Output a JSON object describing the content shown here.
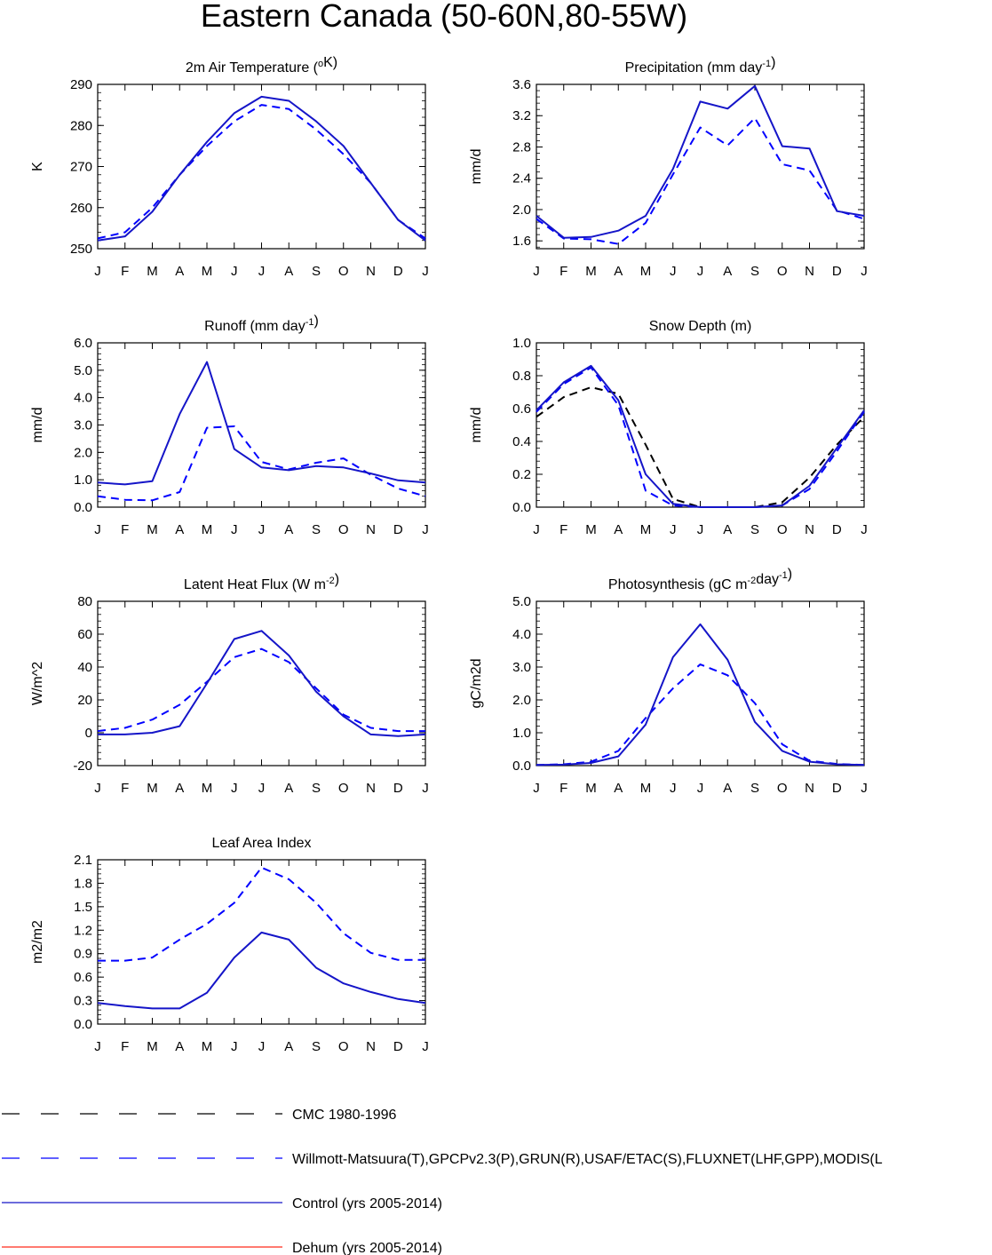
{
  "title": "Eastern Canada (50-60N,80-55W)",
  "colors": {
    "obs": "#0000ff",
    "control": "#1515c8",
    "dehum": "#ff2a1a",
    "cmc": "#000000"
  },
  "legend": [
    {
      "key": "cmc",
      "label": "CMC 1980-1996",
      "style": "dashed",
      "color": "#000000"
    },
    {
      "key": "obs",
      "label": "Willmott-Matsuura(T),GPCPv2.3(P),GRUN(R),USAF/ETAC(S),FLUXNET(LHF,GPP),MODIS(L",
      "style": "dashed",
      "color": "#0000ff"
    },
    {
      "key": "control",
      "label": "Control (yrs 2005-2014)",
      "style": "solid",
      "color": "#1515c8"
    },
    {
      "key": "dehum",
      "label": "Dehum (yrs 2005-2014)",
      "style": "solid",
      "color": "#ff2a1a"
    }
  ],
  "chart_data": [
    {
      "type": "line",
      "title": "2m Air Temperature (",
      "title_sup": "o",
      "title_post": "K)",
      "ylabel": "K",
      "x": [
        "J",
        "F",
        "M",
        "A",
        "M",
        "J",
        "J",
        "A",
        "S",
        "O",
        "N",
        "D",
        "J"
      ],
      "ylim": [
        250,
        290
      ],
      "yticks": [
        "250",
        "260",
        "270",
        "280",
        "290"
      ],
      "series": [
        {
          "name": "Willmott-Matsuura",
          "style": "obs",
          "values": [
            252.5,
            254,
            260,
            268,
            275,
            281,
            285,
            284,
            279,
            273,
            266,
            257,
            252.5
          ]
        },
        {
          "name": "Control",
          "style": "control",
          "values": [
            252,
            253,
            259,
            268,
            276,
            283,
            287,
            286,
            281,
            275,
            266,
            257,
            252
          ]
        }
      ]
    },
    {
      "type": "line",
      "title": "Precipitation (mm day",
      "title_sup": "-1",
      "title_post": ")",
      "ylabel": "mm/d",
      "x": [
        "J",
        "F",
        "M",
        "A",
        "M",
        "J",
        "J",
        "A",
        "S",
        "O",
        "N",
        "D",
        "J"
      ],
      "ylim": [
        1.5,
        3.6
      ],
      "yticks": [
        "1.6",
        "2.0",
        "2.4",
        "2.8",
        "3.2",
        "3.6"
      ],
      "series": [
        {
          "name": "GPCPv2.3",
          "style": "obs",
          "values": [
            1.88,
            1.63,
            1.62,
            1.56,
            1.83,
            2.45,
            3.05,
            2.82,
            3.17,
            2.58,
            2.5,
            1.99,
            1.88
          ]
        },
        {
          "name": "Control",
          "style": "control",
          "values": [
            1.92,
            1.64,
            1.65,
            1.73,
            1.92,
            2.52,
            3.38,
            3.29,
            3.58,
            2.81,
            2.78,
            1.98,
            1.92
          ]
        }
      ]
    },
    {
      "type": "line",
      "title": "Runoff (mm day",
      "title_sup": "-1",
      "title_post": ")",
      "ylabel": "mm/d",
      "x": [
        "J",
        "F",
        "M",
        "A",
        "M",
        "J",
        "J",
        "A",
        "S",
        "O",
        "N",
        "D",
        "J"
      ],
      "ylim": [
        0,
        6
      ],
      "yticks": [
        "0.0",
        "1.0",
        "2.0",
        "3.0",
        "4.0",
        "5.0",
        "6.0"
      ],
      "series": [
        {
          "name": "GRUN",
          "style": "obs",
          "values": [
            0.4,
            0.27,
            0.25,
            0.55,
            2.9,
            2.95,
            1.65,
            1.38,
            1.62,
            1.78,
            1.18,
            0.68,
            0.4
          ]
        },
        {
          "name": "Control",
          "style": "control",
          "values": [
            0.9,
            0.83,
            0.95,
            3.4,
            5.3,
            2.12,
            1.45,
            1.35,
            1.5,
            1.45,
            1.23,
            0.98,
            0.9
          ]
        }
      ]
    },
    {
      "type": "line",
      "title": "Snow Depth (m)",
      "ylabel": "mm/d",
      "x": [
        "J",
        "F",
        "M",
        "A",
        "M",
        "J",
        "J",
        "A",
        "S",
        "O",
        "N",
        "D",
        "J"
      ],
      "ylim": [
        0,
        1
      ],
      "yticks": [
        "0.0",
        "0.2",
        "0.4",
        "0.6",
        "0.8",
        "1.0"
      ],
      "series": [
        {
          "name": "CMC",
          "style": "cmc",
          "values": [
            0.55,
            0.67,
            0.73,
            0.69,
            0.38,
            0.05,
            0.0,
            0.0,
            0.0,
            0.03,
            0.18,
            0.38,
            0.55
          ]
        },
        {
          "name": "USAF/ETAC",
          "style": "obs",
          "values": [
            0.58,
            0.75,
            0.85,
            0.62,
            0.1,
            0.01,
            0.0,
            0.0,
            0.0,
            0.01,
            0.11,
            0.34,
            0.58
          ]
        },
        {
          "name": "Control",
          "style": "control",
          "values": [
            0.59,
            0.76,
            0.86,
            0.65,
            0.2,
            0.02,
            0.0,
            0.0,
            0.0,
            0.01,
            0.13,
            0.36,
            0.59
          ]
        }
      ]
    },
    {
      "type": "line",
      "title": "Latent Heat Flux (W m",
      "title_sup": "-2",
      "title_post": ")",
      "ylabel": "W/m^2",
      "x": [
        "J",
        "F",
        "M",
        "A",
        "M",
        "J",
        "J",
        "A",
        "S",
        "O",
        "N",
        "D",
        "J"
      ],
      "ylim": [
        -20,
        80
      ],
      "yticks": [
        "-20",
        "0",
        "20",
        "40",
        "60",
        "80"
      ],
      "series": [
        {
          "name": "FLUXNET",
          "style": "obs",
          "values": [
            1,
            3,
            8,
            17,
            31,
            46,
            51,
            43,
            27,
            11,
            3,
            1,
            1
          ]
        },
        {
          "name": "Control",
          "style": "control",
          "values": [
            -1,
            -1,
            0,
            4,
            30,
            57,
            62,
            47,
            25,
            10,
            -1,
            -2,
            -1
          ]
        }
      ]
    },
    {
      "type": "line",
      "title": "Photosynthesis (gC m",
      "title_sup": "-2",
      "title_mid": "day",
      "title_sup2": "-1",
      "title_post": ")",
      "ylabel": "gC/m2d",
      "x": [
        "J",
        "F",
        "M",
        "A",
        "M",
        "J",
        "J",
        "A",
        "S",
        "O",
        "N",
        "D",
        "J"
      ],
      "ylim": [
        0,
        5
      ],
      "yticks": [
        "0.0",
        "1.0",
        "2.0",
        "3.0",
        "4.0",
        "5.0"
      ],
      "series": [
        {
          "name": "FLUXNET",
          "style": "obs",
          "values": [
            0.02,
            0.04,
            0.12,
            0.45,
            1.45,
            2.35,
            3.08,
            2.75,
            1.9,
            0.65,
            0.15,
            0.05,
            0.02
          ]
        },
        {
          "name": "Control",
          "style": "control",
          "values": [
            0.02,
            0.03,
            0.08,
            0.28,
            1.25,
            3.3,
            4.3,
            3.22,
            1.33,
            0.45,
            0.12,
            0.04,
            0.02
          ]
        }
      ]
    },
    {
      "type": "line",
      "title": "Leaf Area Index",
      "ylabel": "m2/m2",
      "x": [
        "J",
        "F",
        "M",
        "A",
        "M",
        "J",
        "J",
        "A",
        "S",
        "O",
        "N",
        "D",
        "J"
      ],
      "ylim": [
        0,
        2.1
      ],
      "yticks": [
        "0.0",
        "0.3",
        "0.6",
        "0.9",
        "1.2",
        "1.5",
        "1.8",
        "2.1"
      ],
      "series": [
        {
          "name": "MODIS",
          "style": "obs",
          "values": [
            0.81,
            0.81,
            0.85,
            1.08,
            1.28,
            1.55,
            2.0,
            1.85,
            1.55,
            1.16,
            0.91,
            0.82,
            0.82
          ]
        },
        {
          "name": "Control",
          "style": "control",
          "values": [
            0.27,
            0.23,
            0.2,
            0.2,
            0.4,
            0.85,
            1.17,
            1.08,
            0.72,
            0.52,
            0.41,
            0.32,
            0.27
          ]
        }
      ]
    }
  ]
}
